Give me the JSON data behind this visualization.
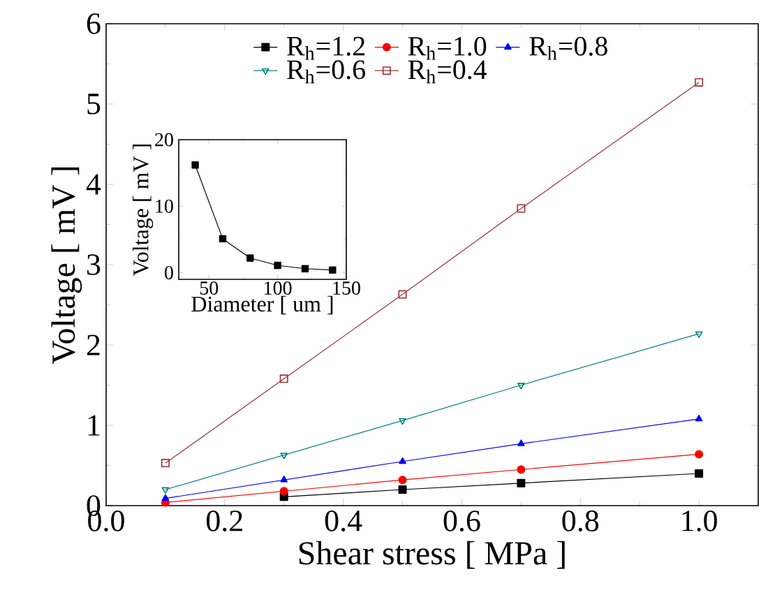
{
  "chart_data": [
    {
      "type": "line",
      "xlabel": "Shear stress [ MPa ]",
      "ylabel": "Voltage [ mV ]",
      "x": [
        0.1,
        0.3,
        0.5,
        0.7,
        1.0
      ],
      "series": [
        {
          "name": "R$_{h}$=1.2",
          "color": "#000000",
          "marker": "square",
          "values": [
            null,
            0.11,
            0.2,
            0.28,
            0.4
          ]
        },
        {
          "name": "R$_{h}$=1.0",
          "color": "#ff0000",
          "marker": "circle",
          "values": [
            0.04,
            0.18,
            0.32,
            0.45,
            0.64
          ]
        },
        {
          "name": "R$_{h}$=0.8",
          "color": "#0000ff",
          "marker": "triangle",
          "values": [
            0.09,
            0.32,
            0.55,
            0.77,
            1.08
          ]
        },
        {
          "name": "R$_{h}$=0.6",
          "color": "#008080",
          "marker": "triangle-down-open",
          "values": [
            0.2,
            0.63,
            1.06,
            1.5,
            2.14
          ]
        },
        {
          "name": "R$_{h}$=0.4",
          "color": "#993333",
          "marker": "square-open",
          "values": [
            0.53,
            1.58,
            2.63,
            3.7,
            5.27
          ]
        }
      ],
      "xlim": [
        0,
        1.1
      ],
      "ylim": [
        0,
        6
      ],
      "xticks": [
        {
          "value": 0,
          "label": "0.0"
        },
        {
          "value": 0.2,
          "label": "0.2"
        },
        {
          "value": 0.4,
          "label": "0.4"
        },
        {
          "value": 0.6,
          "label": "0.6"
        },
        {
          "value": 0.8,
          "label": "0.8"
        },
        {
          "value": 1.0,
          "label": "1.0"
        }
      ],
      "yticks": [
        0,
        1,
        2,
        3,
        4,
        5,
        6
      ],
      "legend": "top",
      "line_style": "solid"
    },
    {
      "type": "line",
      "xlabel": "Diameter [ um ]",
      "ylabel": "Voltage [ mV ]",
      "x": [
        40,
        60,
        80,
        100,
        120,
        140
      ],
      "values": [
        16.2,
        5.1,
        2.2,
        1.1,
        0.6,
        0.4
      ],
      "color": "#000000",
      "marker": "square",
      "xlim": [
        28,
        150
      ],
      "ylim": [
        -1,
        20
      ],
      "xticks": [
        50,
        100,
        150
      ],
      "yticks": [
        0,
        10,
        20
      ],
      "line_style": "solid"
    }
  ]
}
